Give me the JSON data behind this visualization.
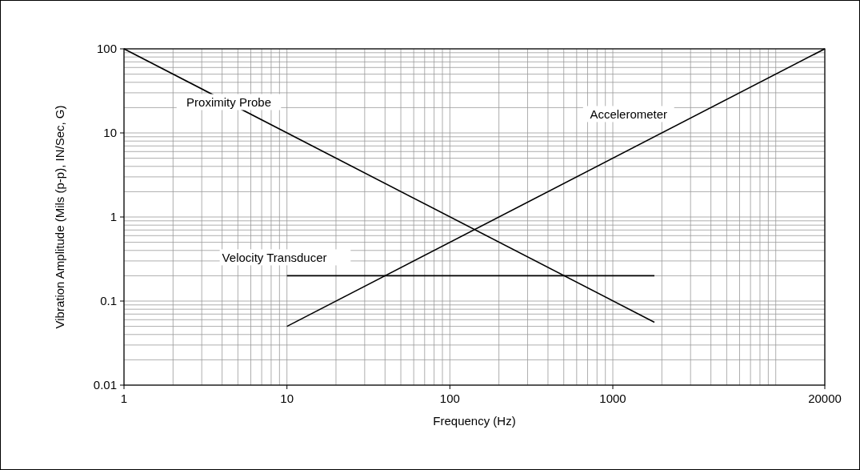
{
  "chart_data": {
    "type": "line",
    "xlabel": "Frequency (Hz)",
    "ylabel": "Vibration Amplitude (Mils (p-p), IN/Sec, G)",
    "log": "xy",
    "grid": true,
    "line_style": "solid",
    "xlim": [
      1,
      20000
    ],
    "xticks": [
      1,
      10,
      100,
      1000,
      20000
    ],
    "ylim": [
      0.01,
      100
    ],
    "yticks": [
      0.01,
      0.1,
      1,
      10,
      100
    ],
    "series": [
      {
        "name": "Proximity Probe",
        "color": "#000000",
        "x": [
          1,
          1800
        ],
        "values": [
          100,
          0.056
        ]
      },
      {
        "name": "Accelerometer",
        "color": "#000000",
        "x": [
          10,
          20000
        ],
        "values": [
          0.05,
          100
        ]
      },
      {
        "name": "Velocity Transducer",
        "color": "#000000",
        "x": [
          10,
          1800
        ],
        "values": [
          0.2,
          0.2
        ]
      }
    ]
  }
}
